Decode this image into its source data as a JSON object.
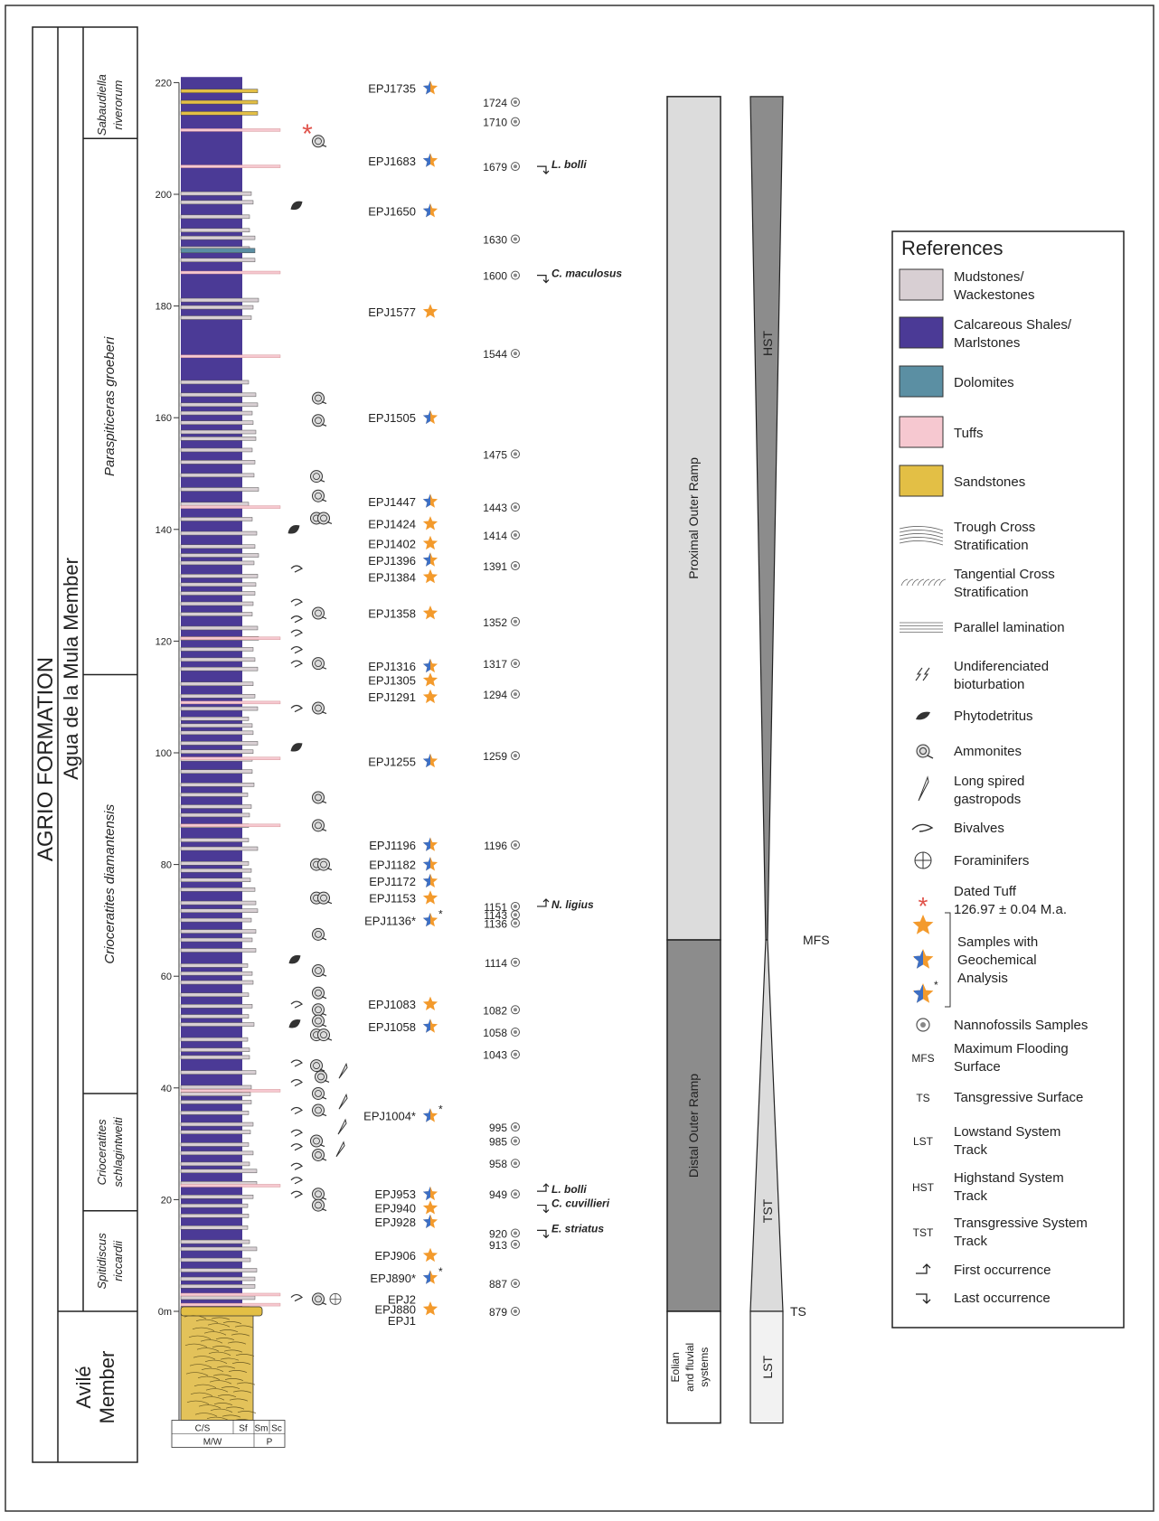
{
  "formation": "AGRIO FORMATION",
  "member_upper": "Agua de la Mula Member",
  "member_lower": "Avilé Member",
  "zones": [
    {
      "lines": [
        "Sabaudiella",
        "riverorum"
      ],
      "bottom_m": 210,
      "top_m": 222
    },
    {
      "lines": [
        "Paraspiticeras groeberi"
      ],
      "bottom_m": 114,
      "top_m": 210
    },
    {
      "lines": [
        "Crioceratites diamantensis"
      ],
      "bottom_m": 39,
      "top_m": 114
    },
    {
      "lines": [
        "Crioceratites",
        "schlagintweiti"
      ],
      "bottom_m": 18,
      "top_m": 39
    },
    {
      "lines": [
        "Spitidiscus",
        "riccardii"
      ],
      "bottom_m": 0,
      "top_m": 18
    }
  ],
  "axis": {
    "ticks": [
      "0m",
      "20",
      "40",
      "60",
      "80",
      "100",
      "120",
      "140",
      "160",
      "180",
      "200",
      "220"
    ]
  },
  "bottom_scale": {
    "top": [
      "C/S",
      "Sf",
      "Sm",
      "Sc"
    ],
    "bottom": [
      "M/W",
      "P"
    ]
  },
  "samples": [
    {
      "label": "EPJ1735",
      "m": 219,
      "star": "blue"
    },
    {
      "label": "EPJ1683",
      "m": 206,
      "star": "blue"
    },
    {
      "label": "EPJ1650",
      "m": 197,
      "star": "blue"
    },
    {
      "label": "EPJ1577",
      "m": 179,
      "star": "orange"
    },
    {
      "label": "EPJ1505",
      "m": 160,
      "star": "blue"
    },
    {
      "label": "EPJ1447",
      "m": 145,
      "star": "blue"
    },
    {
      "label": "EPJ1424",
      "m": 141,
      "star": "orange"
    },
    {
      "label": "EPJ1402",
      "m": 137.5,
      "star": "orange"
    },
    {
      "label": "EPJ1396",
      "m": 134.5,
      "star": "blue"
    },
    {
      "label": "EPJ1384",
      "m": 131.5,
      "star": "orange"
    },
    {
      "label": "EPJ1358",
      "m": 125,
      "star": "orange"
    },
    {
      "label": "EPJ1316",
      "m": 115.5,
      "star": "blue"
    },
    {
      "label": "EPJ1305",
      "m": 113,
      "star": "orange"
    },
    {
      "label": "EPJ1291",
      "m": 110,
      "star": "orange"
    },
    {
      "label": "EPJ1255",
      "m": 98.5,
      "star": "blue"
    },
    {
      "label": "EPJ1196",
      "m": 83.5,
      "star": "blue"
    },
    {
      "label": "EPJ1182",
      "m": 80,
      "star": "blue"
    },
    {
      "label": "EPJ1172",
      "m": 77,
      "star": "blue"
    },
    {
      "label": "EPJ1153",
      "m": 74,
      "star": "orange"
    },
    {
      "label": "EPJ1136*",
      "m": 70,
      "star": "blue-dot"
    },
    {
      "label": "EPJ1083",
      "m": 55,
      "star": "orange"
    },
    {
      "label": "EPJ1058",
      "m": 51,
      "star": "blue"
    },
    {
      "label": "EPJ1004*",
      "m": 35,
      "star": "blue-dot"
    },
    {
      "label": "EPJ953",
      "m": 21,
      "star": "blue"
    },
    {
      "label": "EPJ940",
      "m": 18.5,
      "star": "orange"
    },
    {
      "label": "EPJ928",
      "m": 16,
      "star": "blue"
    },
    {
      "label": "EPJ906",
      "m": 10,
      "star": "orange"
    },
    {
      "label": "EPJ890*",
      "m": 6,
      "star": "blue-dot"
    },
    {
      "label": "EPJ2",
      "m": 2.2,
      "star": "none"
    },
    {
      "label": "EPJ880",
      "m": 0.4,
      "star": "orange"
    },
    {
      "label": "EPJ1",
      "m": -1.6,
      "star": "none"
    }
  ],
  "nannofossils": [
    {
      "label": "1724",
      "m": 216.5
    },
    {
      "label": "1710",
      "m": 213
    },
    {
      "label": "1679",
      "m": 205
    },
    {
      "label": "1630",
      "m": 192
    },
    {
      "label": "1600",
      "m": 185.5
    },
    {
      "label": "1544",
      "m": 171.5
    },
    {
      "label": "1475",
      "m": 153.5
    },
    {
      "label": "1443",
      "m": 144
    },
    {
      "label": "1414",
      "m": 139
    },
    {
      "label": "1391",
      "m": 133.5
    },
    {
      "label": "1352",
      "m": 123.5
    },
    {
      "label": "1317",
      "m": 116
    },
    {
      "label": "1294",
      "m": 110.5
    },
    {
      "label": "1259",
      "m": 99.5
    },
    {
      "label": "1196",
      "m": 83.5
    },
    {
      "label": "1151",
      "m": 72.5
    },
    {
      "label": "1143",
      "m": 71
    },
    {
      "label": "1136",
      "m": 69.5
    },
    {
      "label": "1114",
      "m": 62.5
    },
    {
      "label": "1082",
      "m": 54
    },
    {
      "label": "1058",
      "m": 50
    },
    {
      "label": "1043",
      "m": 46
    },
    {
      "label": "995",
      "m": 33
    },
    {
      "label": "985",
      "m": 30.5
    },
    {
      "label": "958",
      "m": 26.5
    },
    {
      "label": "949",
      "m": 21
    },
    {
      "label": "920",
      "m": 14
    },
    {
      "label": "913",
      "m": 12
    },
    {
      "label": "887",
      "m": 5
    },
    {
      "label": "879",
      "m": 0
    }
  ],
  "bioevents": [
    {
      "label": "L. bolli",
      "m": 205,
      "type": "last"
    },
    {
      "label": "C. maculosus",
      "m": 185.5,
      "type": "last"
    },
    {
      "label": "N. ligius",
      "m": 72.5,
      "type": "first"
    },
    {
      "label": "L. bolli",
      "m": 21.5,
      "type": "first"
    },
    {
      "label": "C. cuvillieri",
      "m": 19,
      "type": "last"
    },
    {
      "label": "E. striatus",
      "m": 14.5,
      "type": "last"
    }
  ],
  "environments": [
    {
      "label": "Proximal Outer Ramp",
      "top_m": 217.5,
      "bottom_m": 66.5,
      "color": "#dcdcdc"
    },
    {
      "label": "Distal Outer Ramp",
      "top_m": 66.5,
      "bottom_m": 0,
      "color": "#8c8c8c"
    },
    {
      "label": "Eolian and fluvial systems",
      "top_m": 0,
      "bottom_m": -20,
      "color": "#ffffff"
    }
  ],
  "sequence": {
    "hst": "HST",
    "tst": "TST",
    "lst": "LST",
    "mfs": "MFS",
    "ts": "TS"
  },
  "dated_tuff_m": 211.5,
  "legend": {
    "title": "References",
    "items": [
      {
        "kind": "swatch",
        "color": "#d8cfd3",
        "lines": [
          "Mudstones/",
          "Wackestones"
        ]
      },
      {
        "kind": "swatch",
        "color": "#4b3a96",
        "lines": [
          "Calcareous Shales/",
          "Marlstones"
        ]
      },
      {
        "kind": "swatch",
        "color": "#5b8fa3",
        "lines": [
          "Dolomites"
        ]
      },
      {
        "kind": "swatch",
        "color": "#f6c8d0",
        "lines": [
          "Tuffs"
        ]
      },
      {
        "kind": "swatch",
        "color": "#e3bf45",
        "lines": [
          "Sandstones"
        ]
      },
      {
        "kind": "trough",
        "lines": [
          "Trough Cross",
          "Stratification"
        ]
      },
      {
        "kind": "tangential",
        "lines": [
          "Tangential Cross",
          "Stratification"
        ]
      },
      {
        "kind": "parallel",
        "lines": [
          "Parallel lamination"
        ]
      },
      {
        "kind": "bioturb",
        "lines": [
          "Undiferenciated",
          "bioturbation"
        ]
      },
      {
        "kind": "phyto",
        "lines": [
          "Phytodetritus"
        ]
      },
      {
        "kind": "ammonite",
        "lines": [
          "Ammonites"
        ]
      },
      {
        "kind": "gastropod",
        "lines": [
          "Long spired",
          "gastropods"
        ]
      },
      {
        "kind": "bivalve",
        "lines": [
          "Bivalves"
        ]
      },
      {
        "kind": "foram",
        "lines": [
          "Foraminifers"
        ]
      },
      {
        "kind": "tuff",
        "lines": [
          "Dated Tuff",
          "126.97 ± 0.04 M.a."
        ]
      },
      {
        "kind": "stars",
        "lines": [
          "Samples with",
          "Geochemical",
          "Analysis"
        ]
      },
      {
        "kind": "nanno",
        "lines": [
          "Nannofossils Samples"
        ]
      },
      {
        "kind": "abbr",
        "abbr": "MFS",
        "lines": [
          "Maximum Flooding",
          "Surface"
        ]
      },
      {
        "kind": "abbr",
        "abbr": "TS",
        "lines": [
          "Tansgressive Surface"
        ]
      },
      {
        "kind": "abbr",
        "abbr": "LST",
        "lines": [
          "Lowstand System",
          "Track"
        ]
      },
      {
        "kind": "abbr",
        "abbr": "HST",
        "lines": [
          "Highstand System",
          "Track"
        ]
      },
      {
        "kind": "abbr",
        "abbr": "TST",
        "lines": [
          "Transgressive System",
          "Track"
        ]
      },
      {
        "kind": "first",
        "lines": [
          "First occurrence"
        ]
      },
      {
        "kind": "last",
        "lines": [
          "Last occurrence"
        ]
      }
    ]
  }
}
